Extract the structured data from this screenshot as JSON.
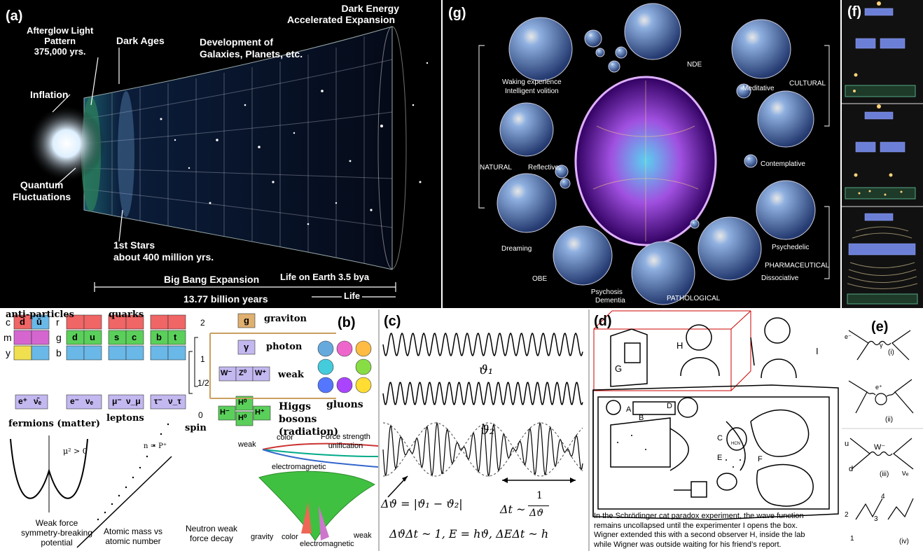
{
  "panel_a": {
    "label": "(a)",
    "afterglow": [
      "Afterglow Light",
      "Pattern",
      "375,000 yrs."
    ],
    "dark_ages": "Dark Ages",
    "development": [
      "Development of",
      "Galaxies, Planets, etc."
    ],
    "dark_energy": [
      "Dark Energy",
      "Accelerated Expansion"
    ],
    "inflation": "Inflation",
    "quantum": [
      "Quantum",
      "Fluctuations"
    ],
    "first_stars": [
      "1st Stars",
      "about 400 million yrs."
    ],
    "big_bang": "Big Bang Expansion",
    "life_on_earth": "Life on Earth 3.5 bya",
    "life": "Life",
    "years": "13.77 billion years"
  },
  "panel_g": {
    "label": "(g)",
    "waking": [
      "Waking experience",
      "Intelligent volition"
    ],
    "nde": "NDE",
    "meditative": "Meditative",
    "cultural": "CULTURAL",
    "natural": "NATURAL",
    "reflective": "Reflective",
    "contemplative": "Contemplative",
    "dreaming": "Dreaming",
    "psychedelic": "Psychedelic",
    "pharmaceutical": "PHARMACEUTICAL",
    "obe": "OBE",
    "dissociative": "Dissociative",
    "psychosis": [
      "Psychosis",
      "Dementia"
    ],
    "pathological": "PATHOLOGICAL"
  },
  "panel_f": {
    "label": "(f)"
  },
  "panel_b": {
    "label": "(b)",
    "anti_particles": "anti-particles",
    "quarks": "quarks",
    "graviton": "graviton",
    "photon": "photon",
    "weak": "weak",
    "gluons": "gluons",
    "higgs": [
      "Higgs",
      "bosons (radiation)"
    ],
    "fermions": "fermions (matter)",
    "leptons": "leptons",
    "spin": "spin",
    "spin_values": [
      "2",
      "1",
      "1/2",
      "0"
    ],
    "row_letters_left": [
      "c",
      "m",
      "y"
    ],
    "row_letters_right": [
      "r",
      "g",
      "b"
    ],
    "anti_quarks": [
      "d̄",
      "ū"
    ],
    "quark_pairs": [
      [
        "d",
        "u"
      ],
      [
        "s",
        "c"
      ],
      [
        "b",
        "t"
      ]
    ],
    "anti_leptons": [
      "e⁺",
      "ν̄ₑ"
    ],
    "leptons_list": [
      [
        "e⁻",
        "νₑ"
      ],
      [
        "μ⁻",
        "ν_μ"
      ],
      [
        "τ⁻",
        "ν_τ"
      ]
    ],
    "graviton_sym": "g",
    "photon_sym": "γ",
    "weak_syms": [
      "W⁻",
      "Z⁰",
      "W⁺"
    ],
    "higgs_syms": [
      "H⁻",
      "H⁰",
      "H⁺",
      "H⁰"
    ],
    "potential": "μ² > 0",
    "weak_force": [
      "Weak force",
      "symmetry-breaking",
      "potential"
    ],
    "atomic_mass": [
      "Atomic mass vs",
      "atomic number"
    ],
    "n_eq_p": "n = P⁺",
    "neutron": [
      "Neutron weak",
      "force decay"
    ],
    "weak_small": "weak",
    "color": "color",
    "force_strength": [
      "Force strength",
      "unification"
    ],
    "electromagnetic": "electromagnetic",
    "gravity": "gravity",
    "color2": "color",
    "electromagnetic2": "electromagnetic",
    "weak2": "weak"
  },
  "panel_c": {
    "label": "(c)",
    "theta1": "ϑ₁",
    "theta2": "ϑ₂",
    "delta_theta": "Δϑ = |ϑ₁ − ϑ₂|",
    "delta_t": "Δt ~",
    "frac_num": "1",
    "frac_den": "Δϑ",
    "relation": "ΔϑΔt ~ 1,  E = hϑ,  ΔEΔt ~ h"
  },
  "panel_d": {
    "label": "(d)",
    "letters": [
      "G",
      "H",
      "I",
      "A",
      "B",
      "D",
      "C",
      "E",
      "F",
      "HCN"
    ],
    "caption": [
      "In the Schrödinger cat paradox experiment, the wave function",
      "remains uncollapsed until the experimenter I opens the box.",
      "Wigner extended this with a second observer H, inside the lab",
      "while Wigner was outside waiting for his friend’s report."
    ]
  },
  "panel_e": {
    "label": "(e)",
    "diagrams": [
      "(i)",
      "(ii)",
      "(iii)",
      "(iv)"
    ],
    "particle_labels": [
      "e⁻",
      "γ",
      "e⁺",
      "u",
      "d",
      "W⁻",
      "νₑ",
      "1",
      "2",
      "3",
      "4"
    ]
  }
}
